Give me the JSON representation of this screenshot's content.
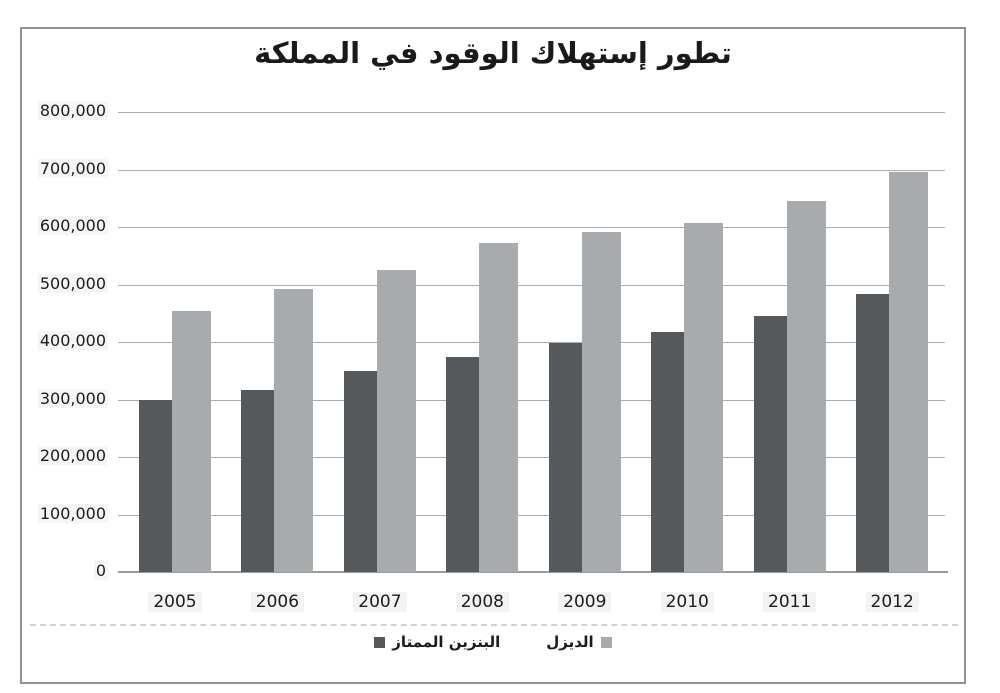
{
  "title": "تطور إستهلاك الوقود في المملكة",
  "legend": {
    "entries": [
      {
        "label": "البنزين الممتاز",
        "color": "#56595b",
        "marker": "square-icon",
        "marker_side": "left"
      },
      {
        "label": "الديزل",
        "color": "#a8abad",
        "marker": "square-icon",
        "marker_side": "right"
      }
    ]
  },
  "colors": {
    "gasoline_bar": "#56595b",
    "diesel_bar": "#a8abad",
    "gridline": "#ababab",
    "axis_line": "#9b9b9b",
    "frame_border": "#8f9193",
    "text": "#1c1c1c",
    "background": "#ffffff"
  },
  "chart_data": {
    "type": "bar",
    "title": "تطور إستهلاك الوقود في المملكة",
    "categories": [
      "2005",
      "2006",
      "2007",
      "2008",
      "2009",
      "2010",
      "2011",
      "2012"
    ],
    "series": [
      {
        "name": "البنزين الممتاز",
        "color": "#56595b",
        "values": [
          300000,
          317000,
          349000,
          374000,
          399000,
          417000,
          446000,
          483000
        ]
      },
      {
        "name": "الديزل",
        "color": "#a8abad",
        "values": [
          454000,
          492000,
          526000,
          573000,
          592000,
          607000,
          645000,
          695000
        ]
      }
    ],
    "xlabel": "",
    "ylabel": "",
    "ylim": [
      0,
      800000
    ],
    "ytick_step": 100000,
    "ytick_labels": [
      "0",
      "100,000",
      "200,000",
      "300,000",
      "400,000",
      "500,000",
      "600,000",
      "700,000",
      "800,000"
    ],
    "grid": true,
    "legend_position": "bottom"
  }
}
